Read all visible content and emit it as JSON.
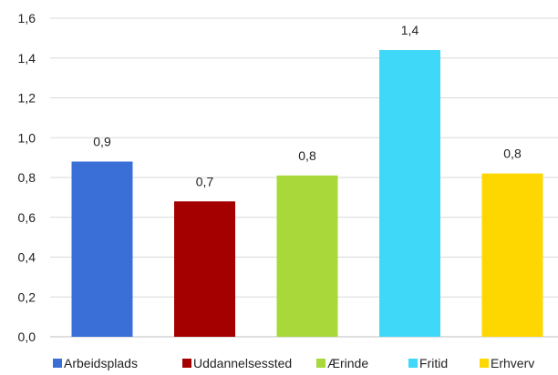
{
  "chart_data": {
    "type": "bar",
    "categories": [
      "Arbeidsplads",
      "Uddannelsessted",
      "Ærinde",
      "Fritid",
      "Erhverv"
    ],
    "values": [
      0.88,
      0.68,
      0.81,
      1.44,
      0.82
    ],
    "data_labels": [
      "0,9",
      "0,7",
      "0,8",
      "1,4",
      "0,8"
    ],
    "colors": [
      "#3A6FD8",
      "#A50000",
      "#A8D83A",
      "#40D8F8",
      "#FFD700"
    ],
    "ylim": [
      0,
      1.6
    ],
    "y_ticks": [
      0,
      0.2,
      0.4,
      0.6,
      0.8,
      1.0,
      1.2,
      1.4,
      1.6
    ],
    "y_tick_labels": [
      "0,0",
      "0,2",
      "0,4",
      "0,6",
      "0,8",
      "1,0",
      "1,2",
      "1,4",
      "1,6"
    ],
    "legend_labels": [
      "Arbeidsplads",
      "Uddannelsessted",
      "Ærinde",
      "Fritid",
      "Erhverv"
    ],
    "legend_position": "bottom",
    "grid": true,
    "title": "",
    "xlabel": "",
    "ylabel": ""
  },
  "colors": {
    "grid": "#D9D9D9",
    "axis": "#BFBFBF",
    "text": "#222222"
  }
}
